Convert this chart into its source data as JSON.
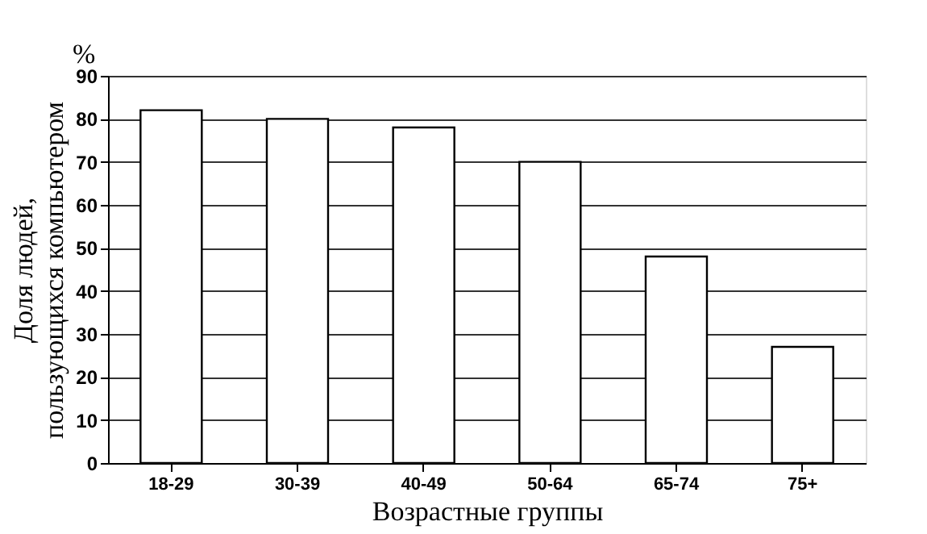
{
  "chart_data": {
    "type": "bar",
    "categories": [
      "18-29",
      "30-39",
      "40-49",
      "50-64",
      "65-74",
      "75+"
    ],
    "values": [
      82,
      80,
      78,
      70,
      48,
      27
    ],
    "color": "#ffffff",
    "ylim": [
      0,
      90
    ],
    "yticks": [
      0,
      10,
      20,
      30,
      40,
      50,
      60,
      70,
      80,
      90
    ],
    "grid": "y",
    "xlabel": "Возрастные группы",
    "ylabel": "Доля людей, пользующихся компьютером",
    "annotations": [
      "%"
    ]
  }
}
